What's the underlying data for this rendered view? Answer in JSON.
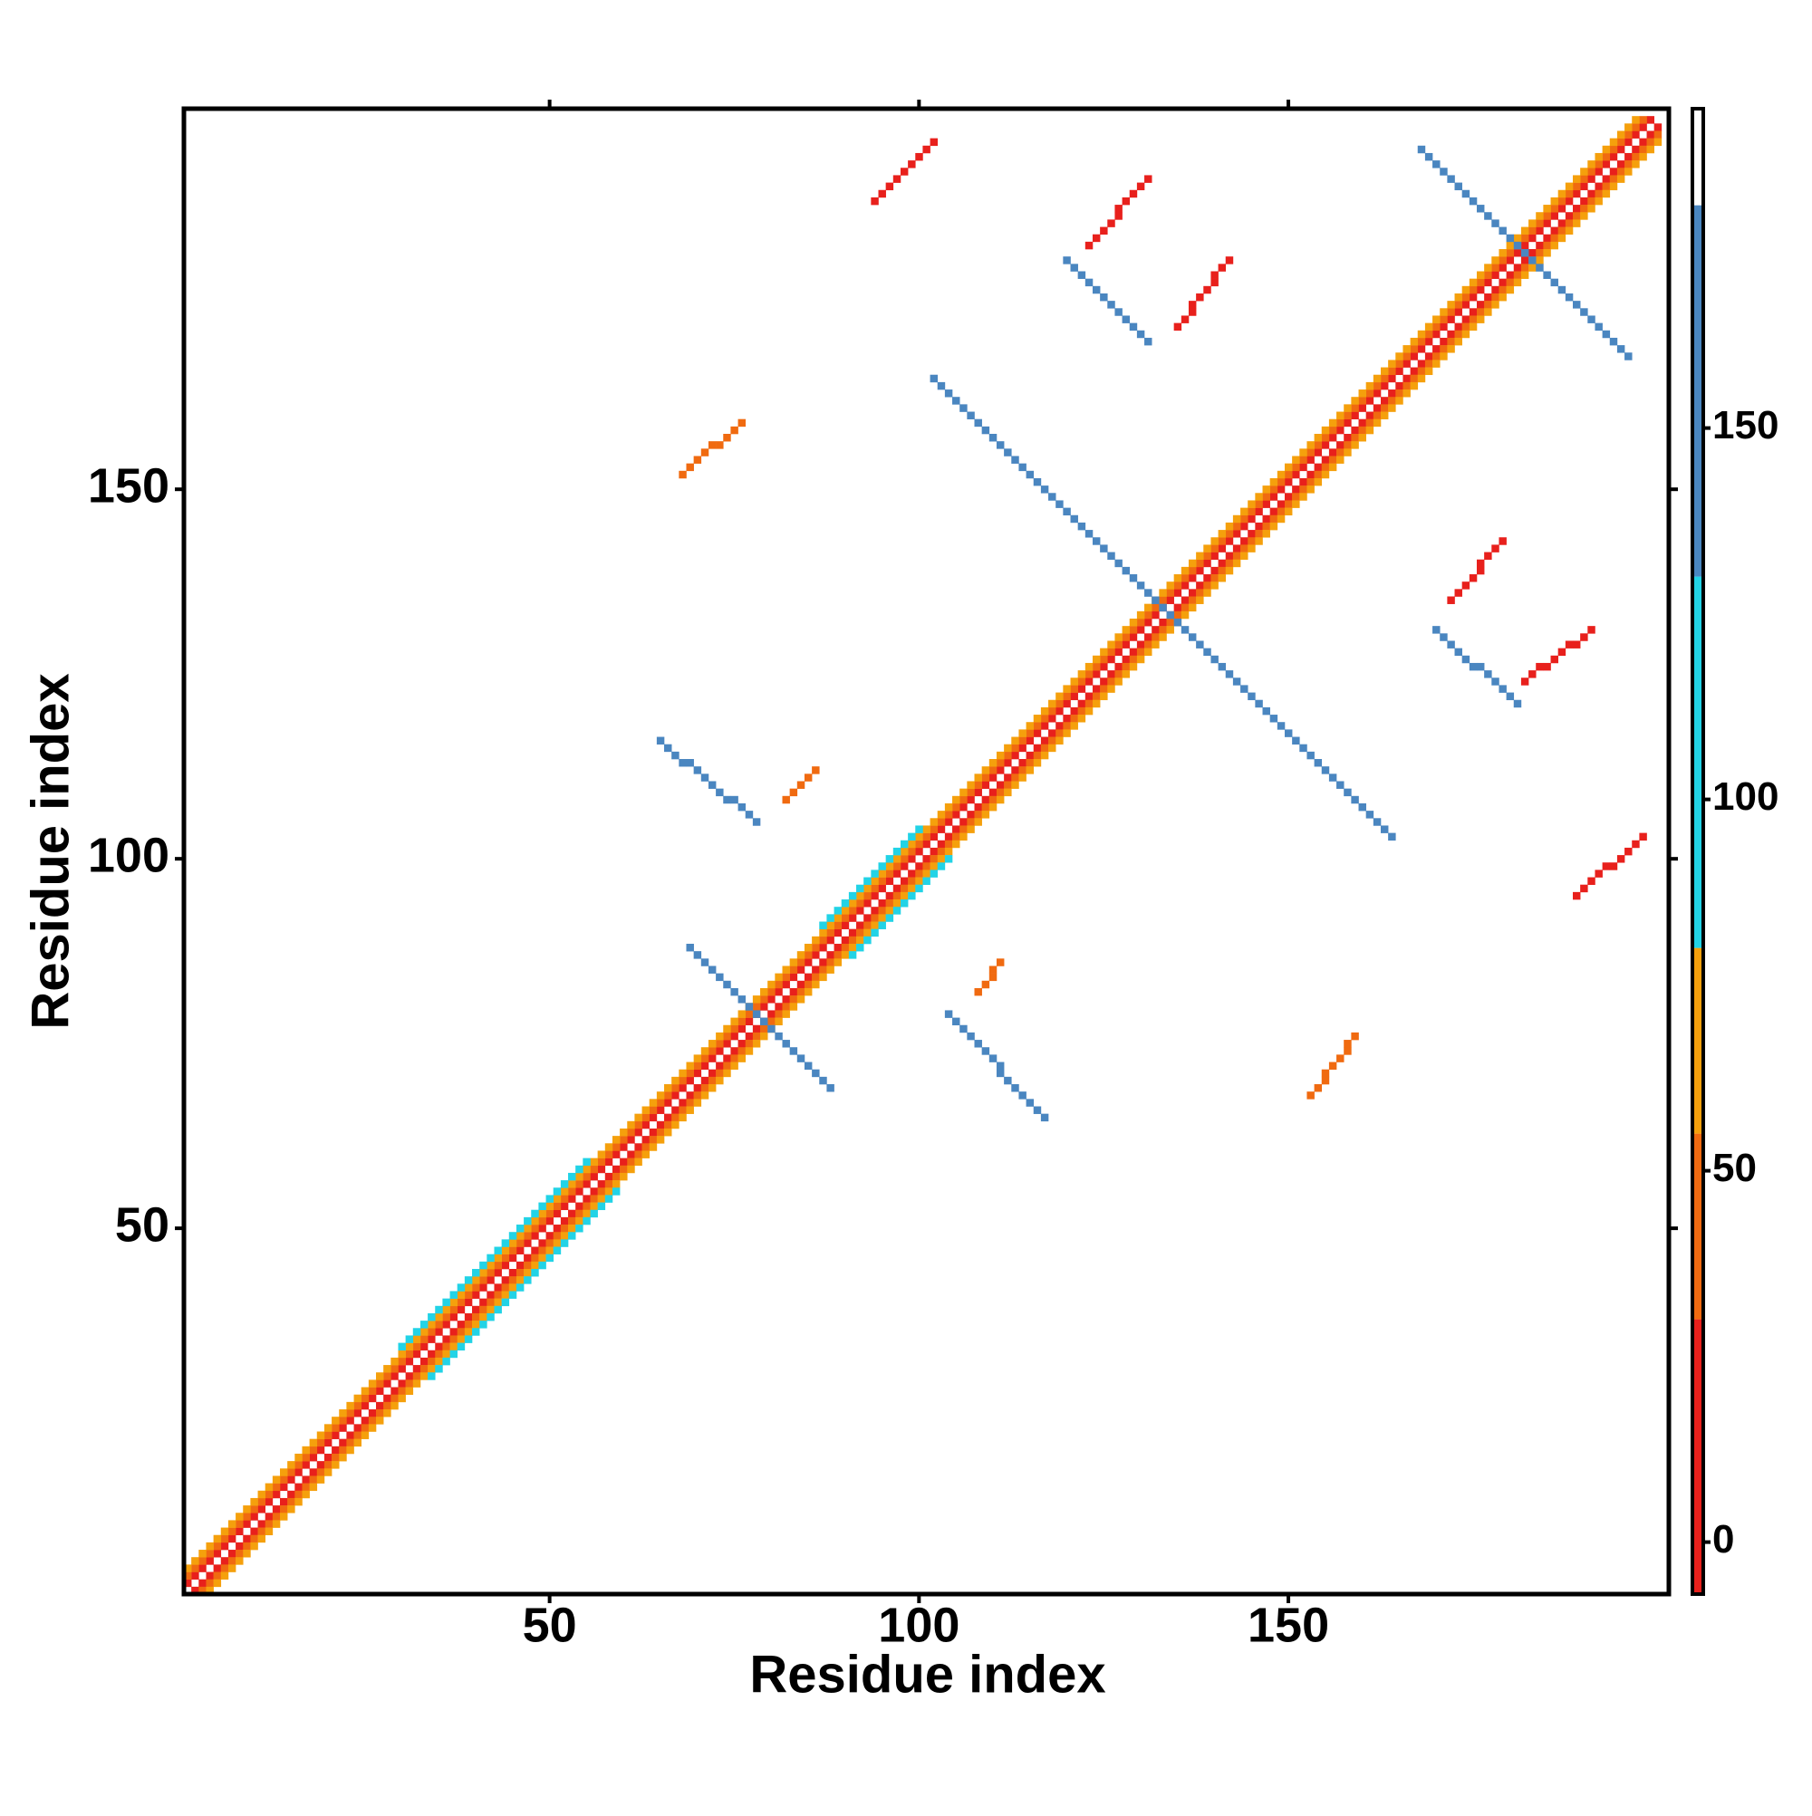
{
  "chart_data": {
    "type": "heatmap",
    "x_label": "Residue index",
    "y_label": "Residue index",
    "xlim": [
      0.5,
      201.5
    ],
    "ylim": [
      0.5,
      201.5
    ],
    "xticks": [
      50,
      100,
      150
    ],
    "yticks": [
      50,
      100,
      150
    ],
    "colorbar": {
      "lim": [
        -7,
        193
      ],
      "ticks": [
        0,
        50,
        100,
        150
      ],
      "bounds": [
        -7,
        30,
        55,
        80,
        130,
        180,
        193
      ],
      "colors": [
        "#e8201c",
        "#f06a10",
        "#f5a00c",
        "#22d3e6",
        "#4a86c0",
        "#ffffff"
      ]
    },
    "segments": [
      {
        "x": [
          1,
          199
        ],
        "y": [
          2,
          200
        ],
        "value": 15
      },
      {
        "x": [
          2,
          200
        ],
        "y": [
          1,
          199
        ],
        "value": 15
      },
      {
        "x": [
          1,
          198
        ],
        "y": [
          3,
          200
        ],
        "value": 45
      },
      {
        "x": [
          3,
          200
        ],
        "y": [
          1,
          198
        ],
        "value": 45
      },
      {
        "x": [
          1,
          197
        ],
        "y": [
          4,
          200
        ],
        "value": 65
      },
      {
        "x": [
          4,
          200
        ],
        "y": [
          1,
          197
        ],
        "value": 65
      },
      {
        "x": [
          30,
          55
        ],
        "y": [
          34,
          59
        ],
        "value": 100
      },
      {
        "x": [
          34,
          59
        ],
        "y": [
          30,
          55
        ],
        "value": 100
      },
      {
        "x": [
          87,
          100
        ],
        "y": [
          91,
          104
        ],
        "value": 100
      },
      {
        "x": [
          91,
          104
        ],
        "y": [
          87,
          100
        ],
        "value": 100
      },
      {
        "x": [
          69,
          88
        ],
        "y": [
          88,
          69
        ],
        "value": 155
      },
      {
        "x": [
          104,
          117
        ],
        "y": [
          79,
          65
        ],
        "value": 155
      },
      {
        "x": [
          65,
          78
        ],
        "y": [
          116,
          105
        ],
        "value": 155
      },
      {
        "x": [
          102,
          164
        ],
        "y": [
          165,
          103
        ],
        "value": 155
      },
      {
        "x": [
          168,
          196
        ],
        "y": [
          196,
          168
        ],
        "value": 155
      },
      {
        "x": [
          120,
          131
        ],
        "y": [
          181,
          170
        ],
        "value": 155
      },
      {
        "x": [
          170,
          181
        ],
        "y": [
          131,
          121
        ],
        "value": 155
      },
      {
        "x": [
          94,
          102
        ],
        "y": [
          189,
          197
        ],
        "value": 10
      },
      {
        "x": [
          189,
          198
        ],
        "y": [
          95,
          103
        ],
        "value": 10
      },
      {
        "x": [
          68,
          76
        ],
        "y": [
          152,
          159
        ],
        "value": 40
      },
      {
        "x": [
          123,
          131
        ],
        "y": [
          183,
          192
        ],
        "value": 20
      },
      {
        "x": [
          135,
          142
        ],
        "y": [
          172,
          181
        ],
        "value": 25
      },
      {
        "x": [
          172,
          179
        ],
        "y": [
          135,
          143
        ],
        "value": 20
      },
      {
        "x": [
          182,
          191
        ],
        "y": [
          124,
          131
        ],
        "value": 25
      },
      {
        "x": [
          82,
          86
        ],
        "y": [
          108,
          112
        ],
        "value": 45
      },
      {
        "x": [
          108,
          111
        ],
        "y": [
          82,
          86
        ],
        "value": 40
      },
      {
        "x": [
          153,
          159
        ],
        "y": [
          68,
          76
        ],
        "value": 30
      }
    ]
  }
}
